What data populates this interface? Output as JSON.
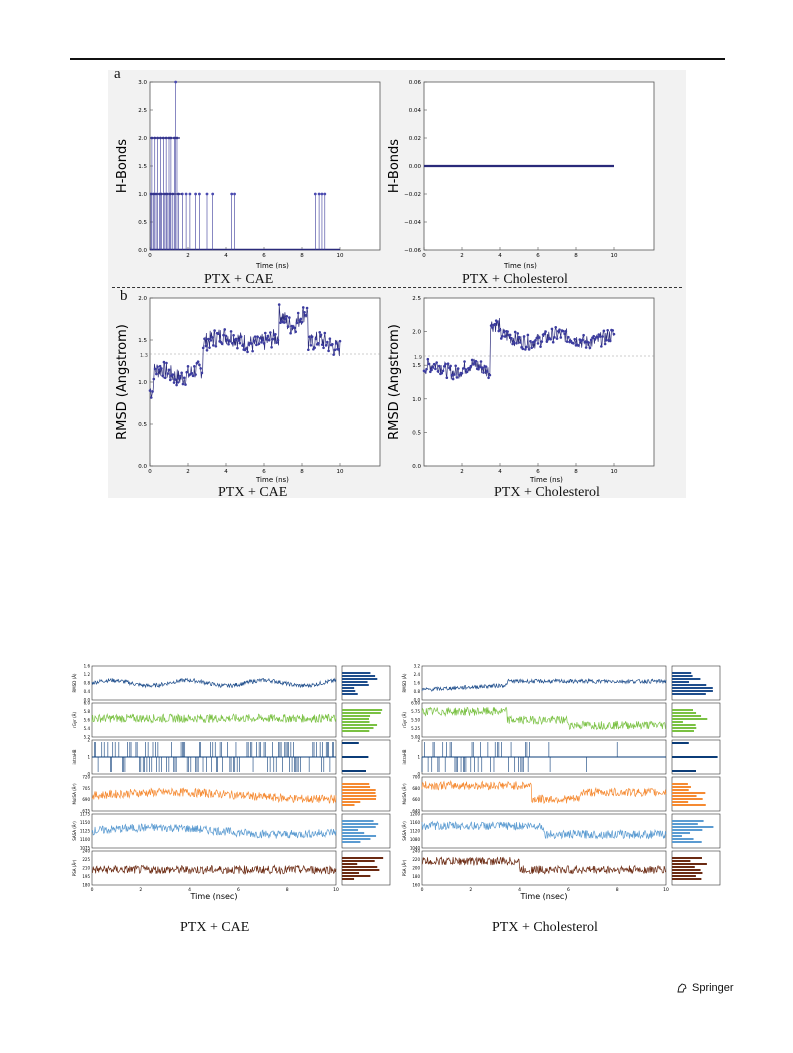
{
  "figure_top": {
    "label_a": "a",
    "label_b": "b",
    "hbonds_cae": {
      "ylabel": "H-Bonds",
      "xlabel": "Time (ns)",
      "caption": "PTX + CAE",
      "yticks": [
        "0.0",
        "0.5",
        "1.0",
        "1.5",
        "2.0",
        "2.5",
        "3.0"
      ],
      "xticks": [
        "0",
        "2",
        "4",
        "6",
        "8",
        "10"
      ]
    },
    "hbonds_chol": {
      "ylabel": "H-Bonds",
      "xlabel": "Time (ns)",
      "caption": "PTX + Cholesterol",
      "yticks": [
        "−0.06",
        "−0.04",
        "−0.02",
        "0.00",
        "0.02",
        "0.04",
        "0.06"
      ],
      "xticks": [
        "0",
        "2",
        "4",
        "6",
        "8",
        "10"
      ]
    },
    "rmsd_cae": {
      "ylabel": "RMSD (Angstrom)",
      "xlabel": "Time (ns)",
      "caption": "PTX + CAE",
      "yticks": [
        "0.0",
        "0.5",
        "1.0",
        "1.5",
        "2.0"
      ],
      "xticks": [
        "0",
        "2",
        "4",
        "6",
        "8",
        "10"
      ],
      "avg_label": "1.3"
    },
    "rmsd_chol": {
      "ylabel": "RMSD (Angstrom)",
      "xlabel": "Time (ns)",
      "caption": "PTX + Cholesterol",
      "yticks": [
        "0.0",
        "0.5",
        "1.0",
        "1.5",
        "2.0",
        "2.5"
      ],
      "xticks": [
        "2",
        "4",
        "6",
        "8",
        "10"
      ],
      "avg_label": "1.9"
    }
  },
  "figure_bottom": {
    "cae": {
      "caption": "PTX + CAE",
      "xlabel": "Time (nsec)",
      "xticks": [
        "0",
        "2",
        "4",
        "6",
        "8",
        "10"
      ],
      "rows": [
        {
          "ylabel": "RMSD (Å)",
          "yticks": [
            "1.6",
            "1.2",
            "0.8",
            "0.4",
            "0.0"
          ],
          "color": "#1f4e8c"
        },
        {
          "ylabel": "rGyr (Å)",
          "yticks": [
            "6.0",
            "5.8",
            "5.6",
            "5.4",
            "5.2"
          ],
          "color": "#7ac143"
        },
        {
          "ylabel": "intraHB",
          "yticks": [
            "2",
            "1",
            "0"
          ],
          "color": "#0b3c78"
        },
        {
          "ylabel": "MolSA (Å²)",
          "yticks": [
            "720",
            "705",
            "690",
            "675"
          ],
          "color": "#f58a32"
        },
        {
          "ylabel": "SASA (Å²)",
          "yticks": [
            "1175",
            "1150",
            "1125",
            "1100",
            "1075"
          ],
          "color": "#5b9bd1"
        },
        {
          "ylabel": "PSA (Å²)",
          "yticks": [
            "240",
            "225",
            "210",
            "195",
            "180"
          ],
          "color": "#6b2a12"
        }
      ]
    },
    "chol": {
      "caption": "PTX + Cholesterol",
      "xlabel": "Time (nsec)",
      "xticks": [
        "0",
        "2",
        "4",
        "6",
        "8",
        "10"
      ],
      "rows": [
        {
          "ylabel": "RMSD (Å)",
          "yticks": [
            "3.2",
            "2.4",
            "1.6",
            "0.8",
            "0.0"
          ],
          "color": "#1f4e8c"
        },
        {
          "ylabel": "rGyr (Å)",
          "yticks": [
            "6.00",
            "5.75",
            "5.50",
            "5.25",
            "5.00"
          ],
          "color": "#7ac143"
        },
        {
          "ylabel": "intraHB",
          "yticks": [
            "2",
            "1",
            "0"
          ],
          "color": "#0b3c78"
        },
        {
          "ylabel": "MolSA (Å²)",
          "yticks": [
            "700",
            "680",
            "660",
            "640"
          ],
          "color": "#f58a32"
        },
        {
          "ylabel": "SASA (Å²)",
          "yticks": [
            "1200",
            "1160",
            "1120",
            "1080",
            "1040"
          ],
          "color": "#5b9bd1"
        },
        {
          "ylabel": "PSA (Å²)",
          "yticks": [
            "240",
            "220",
            "200",
            "180",
            "160"
          ],
          "color": "#6b2a12"
        }
      ]
    }
  },
  "footer": {
    "publisher": "Springer"
  }
}
